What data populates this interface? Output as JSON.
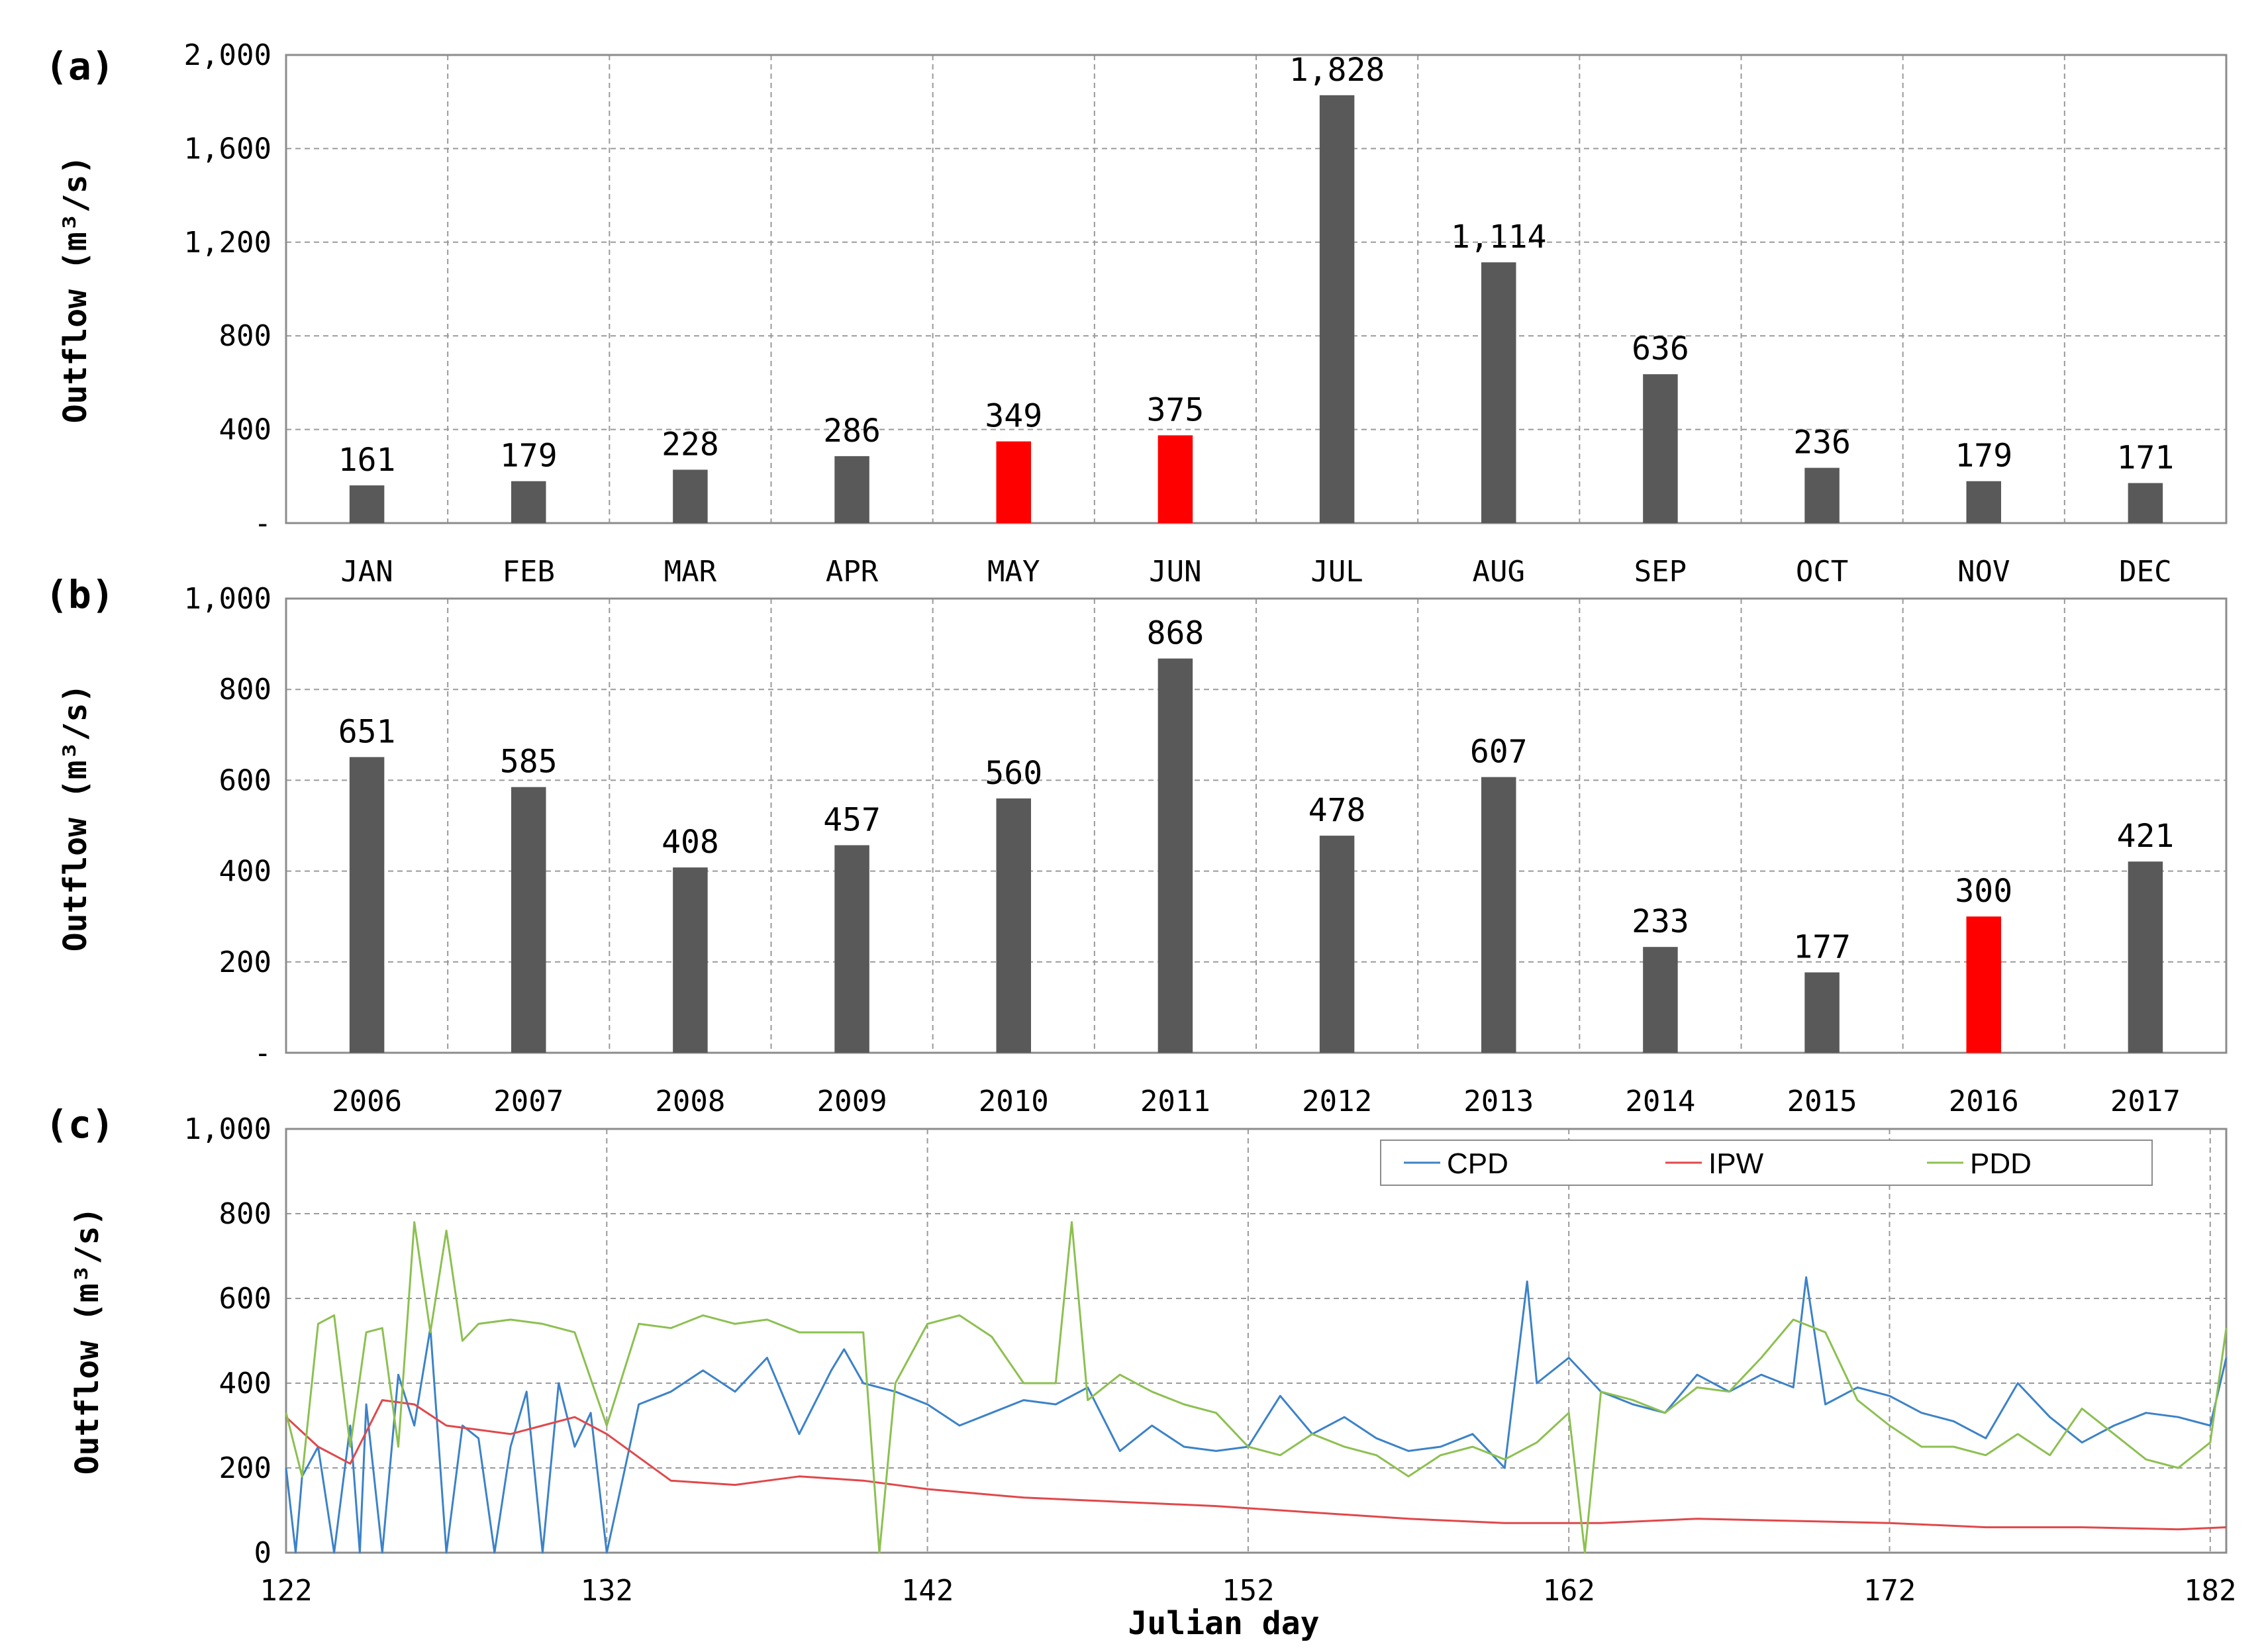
{
  "chart_data": [
    {
      "type": "bar",
      "panel_label": "(a)",
      "ylabel": "Outflow (m³/s)",
      "ylim": [
        0,
        2000
      ],
      "y_ticks": [
        "-",
        "400",
        "800",
        "1,200",
        "1,600",
        "2,000"
      ],
      "grid": true,
      "categories": [
        "JAN",
        "FEB",
        "MAR",
        "APR",
        "MAY",
        "JUN",
        "JUL",
        "AUG",
        "SEP",
        "OCT",
        "NOV",
        "DEC"
      ],
      "values": [
        161,
        179,
        228,
        286,
        349,
        375,
        1828,
        1114,
        636,
        236,
        179,
        171
      ],
      "value_labels": [
        "161",
        "179",
        "228",
        "286",
        "349",
        "375",
        "1,828",
        "1,114",
        "636",
        "236",
        "179",
        "171"
      ],
      "highlight": [
        false,
        false,
        false,
        false,
        true,
        true,
        false,
        false,
        false,
        false,
        false,
        false
      ]
    },
    {
      "type": "bar",
      "panel_label": "(b)",
      "ylabel": "Outflow (m³/s)",
      "ylim": [
        0,
        1000
      ],
      "y_ticks": [
        "-",
        "200",
        "400",
        "600",
        "800",
        "1,000"
      ],
      "grid": true,
      "categories": [
        "2006",
        "2007",
        "2008",
        "2009",
        "2010",
        "2011",
        "2012",
        "2013",
        "2014",
        "2015",
        "2016",
        "2017"
      ],
      "values": [
        651,
        585,
        408,
        457,
        560,
        868,
        478,
        607,
        233,
        177,
        300,
        421
      ],
      "value_labels": [
        "651",
        "585",
        "408",
        "457",
        "560",
        "868",
        "478",
        "607",
        "233",
        "177",
        "300",
        "421"
      ],
      "highlight": [
        false,
        false,
        false,
        false,
        false,
        false,
        false,
        false,
        false,
        false,
        true,
        false
      ]
    },
    {
      "type": "line",
      "panel_label": "(c)",
      "ylabel": "Outflow (m³/s)",
      "xlabel": "Julian day",
      "ylim": [
        0,
        1000
      ],
      "xlim": [
        122,
        182.5
      ],
      "x_ticks": [
        "122",
        "132",
        "142",
        "152",
        "162",
        "172",
        "182"
      ],
      "y_ticks": [
        "0",
        "200",
        "400",
        "600",
        "800",
        "1,000"
      ],
      "grid": true,
      "legend_position": "top-right",
      "series": [
        {
          "name": "CPD",
          "color": "#3c82c8",
          "x": [
            122,
            122.3,
            122.5,
            123,
            123.5,
            124,
            124.3,
            124.5,
            125,
            125.5,
            126,
            126.5,
            127,
            127.5,
            128,
            128.5,
            129,
            129.5,
            130,
            130.5,
            131,
            131.5,
            132,
            133,
            134,
            135,
            136,
            137,
            138,
            139,
            139.4,
            140,
            141,
            142,
            143,
            144,
            145,
            146,
            147,
            148,
            149,
            150,
            151,
            152,
            153,
            154,
            155,
            156,
            157,
            158,
            159,
            160,
            160.7,
            161,
            162,
            163,
            164,
            165,
            166,
            167,
            168,
            169,
            169.4,
            170,
            171,
            172,
            173,
            174,
            175,
            176,
            177,
            178,
            179,
            180,
            181,
            182,
            182.5
          ],
          "y": [
            200,
            0,
            180,
            250,
            0,
            300,
            0,
            350,
            0,
            420,
            300,
            530,
            0,
            300,
            270,
            0,
            250,
            380,
            0,
            400,
            250,
            330,
            0,
            350,
            380,
            430,
            380,
            460,
            280,
            430,
            480,
            400,
            380,
            350,
            300,
            330,
            360,
            350,
            390,
            240,
            300,
            250,
            240,
            250,
            370,
            280,
            320,
            270,
            240,
            250,
            280,
            200,
            640,
            400,
            460,
            380,
            350,
            330,
            420,
            380,
            420,
            390,
            650,
            350,
            390,
            370,
            330,
            310,
            270,
            400,
            320,
            260,
            300,
            330,
            320,
            300,
            460
          ]
        },
        {
          "name": "IPW",
          "color": "#e0484b",
          "x": [
            122,
            123,
            124,
            125,
            126,
            127,
            128,
            129,
            130,
            131,
            132,
            134,
            136,
            138,
            140,
            142,
            145,
            148,
            151,
            154,
            157,
            160,
            163,
            166,
            169,
            172,
            175,
            178,
            181,
            182.5
          ],
          "y": [
            320,
            250,
            210,
            360,
            350,
            300,
            290,
            280,
            300,
            320,
            280,
            170,
            160,
            180,
            170,
            150,
            130,
            120,
            110,
            95,
            80,
            70,
            70,
            80,
            75,
            70,
            60,
            60,
            55,
            60
          ]
        },
        {
          "name": "PDD",
          "color": "#8cc050",
          "x": [
            122,
            122.5,
            123,
            123.5,
            124,
            124.5,
            125,
            125.5,
            126,
            126.5,
            127,
            127.5,
            128,
            129,
            130,
            131,
            132,
            133,
            134,
            135,
            136,
            137,
            138,
            139,
            140,
            140.5,
            141,
            142,
            143,
            144,
            145,
            146,
            146.5,
            147,
            148,
            149,
            150,
            151,
            152,
            153,
            154,
            155,
            156,
            157,
            158,
            159,
            160,
            161,
            162,
            162.5,
            163,
            164,
            165,
            166,
            167,
            168,
            169,
            170,
            171,
            172,
            173,
            174,
            175,
            176,
            177,
            178,
            179,
            180,
            181,
            182,
            182.5
          ],
          "y": [
            330,
            180,
            540,
            560,
            250,
            520,
            530,
            250,
            780,
            520,
            760,
            500,
            540,
            550,
            540,
            520,
            300,
            540,
            530,
            560,
            540,
            550,
            520,
            520,
            520,
            0,
            400,
            540,
            560,
            510,
            400,
            400,
            780,
            360,
            420,
            380,
            350,
            330,
            250,
            230,
            280,
            250,
            230,
            180,
            230,
            250,
            220,
            260,
            330,
            0,
            380,
            360,
            330,
            390,
            380,
            460,
            550,
            520,
            360,
            300,
            250,
            250,
            230,
            280,
            230,
            340,
            280,
            220,
            200,
            260,
            530
          ]
        }
      ]
    }
  ]
}
